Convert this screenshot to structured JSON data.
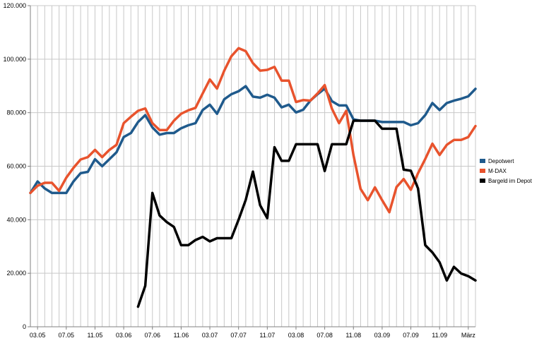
{
  "chart_data": {
    "type": "line",
    "title": "",
    "xlabel": "",
    "ylabel": "",
    "ylim": [
      0,
      120000
    ],
    "y_ticks": [
      "0",
      "20.000",
      "40.000",
      "60.000",
      "80.000",
      "100.000",
      "120.000"
    ],
    "x_tick_labels": [
      "03.05",
      "07.05",
      "11.05",
      "03.06",
      "07.06",
      "11.06",
      "03.07",
      "07.07",
      "11.07",
      "03.08",
      "07.08",
      "11.08",
      "03.09",
      "07.09",
      "11.09",
      "März"
    ],
    "grid": "vertical and horizontal",
    "legend_position": "right",
    "series": [
      {
        "name": "Depotwert",
        "color": "#1f5a8c",
        "values": [
          50000,
          54300,
          51700,
          50000,
          50000,
          50000,
          54300,
          57400,
          57900,
          62600,
          60000,
          62600,
          65200,
          70900,
          72400,
          76500,
          79100,
          74500,
          71800,
          72400,
          72400,
          74200,
          75300,
          76100,
          81000,
          83000,
          79600,
          85000,
          86900,
          88000,
          89900,
          86000,
          85600,
          86700,
          85600,
          82000,
          83000,
          80100,
          81100,
          84500,
          86900,
          89000,
          84300,
          82700,
          82700,
          77500,
          77000,
          77000,
          77000,
          76500,
          76500,
          76500,
          76500,
          75300,
          76100,
          79100,
          83600,
          81000,
          83600,
          84500,
          85200,
          86100,
          88900
        ]
      },
      {
        "name": "M-DAX",
        "color": "#e8532d",
        "values": [
          50000,
          52700,
          53800,
          53800,
          50800,
          55700,
          59400,
          62500,
          63400,
          66100,
          63400,
          66100,
          68000,
          76100,
          78500,
          80700,
          81600,
          76100,
          73500,
          73500,
          77000,
          79600,
          80900,
          81800,
          87200,
          92400,
          89000,
          95700,
          101100,
          104100,
          103000,
          98500,
          95700,
          96000,
          97100,
          92000,
          92000,
          84000,
          84700,
          84500,
          87200,
          90300,
          81500,
          76100,
          80700,
          64200,
          51500,
          47300,
          52100,
          47300,
          42800,
          52200,
          55200,
          51200,
          57400,
          62700,
          68400,
          64200,
          68000,
          69800,
          69800,
          70900,
          75000
        ]
      },
      {
        "name": "Bargeld im Depot",
        "color": "#000000",
        "values": [
          null,
          null,
          null,
          null,
          null,
          null,
          null,
          null,
          null,
          null,
          null,
          null,
          null,
          null,
          null,
          7500,
          15300,
          50000,
          41600,
          39100,
          37300,
          30500,
          30500,
          32400,
          33600,
          31900,
          33100,
          33100,
          33100,
          40000,
          47400,
          58000,
          45400,
          40600,
          67100,
          62000,
          62000,
          68200,
          68200,
          68200,
          68200,
          58200,
          68200,
          68200,
          68200,
          77000,
          77000,
          77000,
          77000,
          74000,
          74000,
          74000,
          58700,
          58300,
          51700,
          30500,
          27800,
          24100,
          17300,
          22400,
          19900,
          18900,
          17300
        ]
      }
    ]
  }
}
